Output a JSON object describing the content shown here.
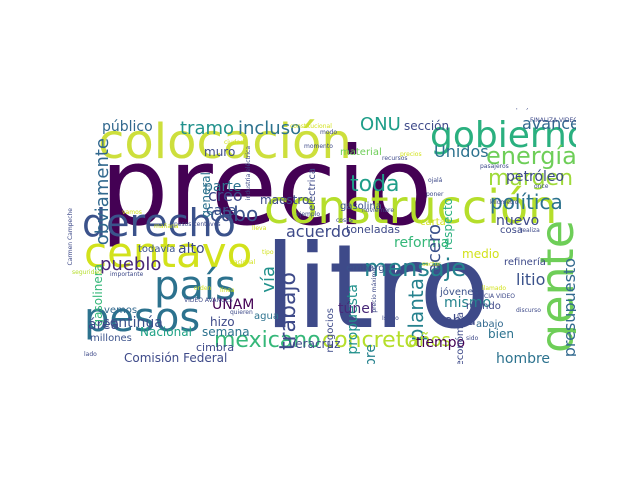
{
  "title": "",
  "words": [
    {
      "text": "precio",
      "color": "#440154"
    },
    {
      "text": "litro",
      "color": "#3e4a89"
    },
    {
      "text": "colocación",
      "color": "#cddf3c"
    },
    {
      "text": "construcción",
      "color": "#b5de2b"
    },
    {
      "text": "gobierno",
      "color": "#2ab07f"
    },
    {
      "text": "centavo",
      "color": "#d2e21b"
    },
    {
      "text": "derecho",
      "color": "#3b528b"
    },
    {
      "text": "país",
      "color": "#2c728e"
    },
    {
      "text": "pesos",
      "color": "#2c728e"
    },
    {
      "text": "gente",
      "color": "#6ece58"
    },
    {
      "text": "mensaje",
      "color": "#25848e"
    },
    {
      "text": "concreto",
      "color": "#b5de2b"
    },
    {
      "text": "energía",
      "color": "#6ece58"
    },
    {
      "text": "margen",
      "color": "#9fda3a"
    },
    {
      "text": "política",
      "color": "#2c728e"
    },
    {
      "text": "toda",
      "color": "#1f9e89"
    },
    {
      "text": "mexicano",
      "color": "#35b779"
    },
    {
      "text": "trabajo",
      "color": "#3e4a89"
    },
    {
      "text": "obviamente",
      "color": "#31688e"
    },
    {
      "text": "tramo",
      "color": "#21918c"
    },
    {
      "text": "incluso",
      "color": "#2c728e"
    },
    {
      "text": "ONU",
      "color": "#1f9e89"
    },
    {
      "text": "cabo",
      "color": "#3b528b"
    },
    {
      "text": "pueblo",
      "color": "#482878"
    },
    {
      "text": "vía",
      "color": "#21918c"
    },
    {
      "text": "presupuesto",
      "color": "#31688e"
    },
    {
      "text": "planta",
      "color": "#26828e"
    },
    {
      "text": "avance",
      "color": "#31688e"
    },
    {
      "text": "petróleo",
      "color": "#3e4a89"
    },
    {
      "text": "litio",
      "color": "#3b528b"
    },
    {
      "text": "años",
      "color": "#b5de2b"
    },
    {
      "text": "hombre",
      "color": "#2c728e"
    },
    {
      "text": "Unidos",
      "color": "#2c728e"
    },
    {
      "text": "propuesta",
      "color": "#21918c"
    },
    {
      "text": "público",
      "color": "#31688e"
    },
    {
      "text": "sección",
      "color": "#3e4a89"
    },
    {
      "text": "continúa",
      "color": "#3b528b"
    },
    {
      "text": "gasolinera",
      "color": "#35b779"
    },
    {
      "text": "área",
      "color": "#3e4a89"
    },
    {
      "text": "Nacional",
      "color": "#20a386"
    },
    {
      "text": "semana",
      "color": "#2c728e"
    },
    {
      "text": "UNAM",
      "color": "#440154"
    },
    {
      "text": "Veracruz",
      "color": "#3e4a89"
    },
    {
      "text": "túnel",
      "color": "#482878"
    },
    {
      "text": "reforma",
      "color": "#35b779"
    },
    {
      "text": "nuevo",
      "color": "#3e4a89"
    },
    {
      "text": "mismo",
      "color": "#25848e"
    },
    {
      "text": "obra",
      "color": "#3e4a89"
    },
    {
      "text": "bien",
      "color": "#2c728e"
    },
    {
      "text": "tiempo",
      "color": "#440154"
    },
    {
      "text": "siempre",
      "color": "#26828e"
    },
    {
      "text": "acero",
      "color": "#3b528b"
    },
    {
      "text": "acuerdo",
      "color": "#3e4a89"
    },
    {
      "text": "creo",
      "color": "#3e4a89"
    },
    {
      "text": "cara",
      "color": "#3b528b"
    },
    {
      "text": "parte",
      "color": "#2c728e"
    },
    {
      "text": "muro",
      "color": "#3e4a89"
    },
    {
      "text": "general",
      "color": "#2c728e"
    },
    {
      "text": "alto",
      "color": "#3e4a89"
    },
    {
      "text": "todavía",
      "color": "#3b528b"
    },
    {
      "text": "Comisión Federal",
      "color": "#3e4a89"
    },
    {
      "text": "cimbra",
      "color": "#3e4a89"
    },
    {
      "text": "millones",
      "color": "#3b528b"
    },
    {
      "text": "vemos",
      "color": "#31688e"
    },
    {
      "text": "hizo",
      "color": "#3e4a89"
    },
    {
      "text": "agua",
      "color": "#2c728e"
    },
    {
      "text": "negocios",
      "color": "#3e4a89"
    },
    {
      "text": "toneladas",
      "color": "#3e4a89"
    },
    {
      "text": "embargo",
      "color": "#3b528b"
    },
    {
      "text": "refinería",
      "color": "#3e4a89"
    },
    {
      "text": "cosa",
      "color": "#3e4a89"
    },
    {
      "text": "medio",
      "color": "#d2e21b"
    },
    {
      "text": "respecto",
      "color": "#2ab07f"
    },
    {
      "text": "económica",
      "color": "#3e4a89"
    },
    {
      "text": "jóvenes",
      "color": "#3b528b"
    },
    {
      "text": "mundo",
      "color": "#3e4a89"
    },
    {
      "text": "abajo",
      "color": "#31688e"
    },
    {
      "text": "maestro",
      "color": "#3e4a89"
    },
    {
      "text": "gasolina",
      "color": "#3b528b"
    },
    {
      "text": "material",
      "color": "#6ece58"
    },
    {
      "text": "eléctrica",
      "color": "#3e4a89"
    },
    {
      "text": "pasajeros",
      "color": "#3e4a89"
    },
    {
      "text": "kilómetro",
      "color": "#3e4a89"
    },
    {
      "text": "poner",
      "color": "#3e4a89"
    },
    {
      "text": "ojalá",
      "color": "#3e4a89"
    },
    {
      "text": "carta",
      "color": "#d2e21b"
    },
    {
      "text": "recursos",
      "color": "#3e4a89"
    },
    {
      "text": "momento",
      "color": "#3e4a89"
    },
    {
      "text": "modo",
      "color": "#3e4a89"
    },
    {
      "text": "ejemplo",
      "color": "#3e4a89"
    },
    {
      "text": "noviembre",
      "color": "#3e4a89"
    },
    {
      "text": "constitucional",
      "color": "#d2e21b"
    },
    {
      "text": "industria eléctrica",
      "color": "#3e4a89"
    },
    {
      "text": "pesos centavos",
      "color": "#3e4a89"
    },
    {
      "text": "seguridad",
      "color": "#b5de2b"
    },
    {
      "text": "importante",
      "color": "#3e4a89"
    },
    {
      "text": "Carmen Campeche",
      "color": "#3e4a89"
    },
    {
      "text": "VIDEO AVANCES",
      "color": "#3e4a89"
    },
    {
      "text": "quieren",
      "color": "#3e4a89"
    },
    {
      "text": "lado",
      "color": "#3e4a89"
    },
    {
      "text": "precio máximo",
      "color": "#3e4a89"
    },
    {
      "text": "ciudad",
      "color": "#d2e21b"
    },
    {
      "text": "vamos",
      "color": "#d2e21b"
    },
    {
      "text": "sector",
      "color": "#d2e21b"
    },
    {
      "text": "llamado",
      "color": "#d2e21b"
    },
    {
      "text": "Istmo",
      "color": "#3e4a89"
    },
    {
      "text": "proyecto",
      "color": "#3e4a89"
    },
    {
      "text": "FINALIZA VIDEO",
      "color": "#3e4a89"
    },
    {
      "text": "INICIA VIDEO",
      "color": "#3e4a89"
    },
    {
      "text": "realiza",
      "color": "#3e4a89"
    },
    {
      "text": "nacional",
      "color": "#d2e21b"
    },
    {
      "text": "tipo",
      "color": "#d2e21b"
    },
    {
      "text": "orden",
      "color": "#d2e21b"
    },
    {
      "text": "línea",
      "color": "#d2e21b"
    },
    {
      "text": "discurso",
      "color": "#3e4a89"
    },
    {
      "text": "cosas",
      "color": "#3e4a89"
    },
    {
      "text": "precios",
      "color": "#d2e21b"
    },
    {
      "text": "once",
      "color": "#3e4a89"
    },
    {
      "text": "mañana",
      "color": "#d2e21b"
    },
    {
      "text": "lleva",
      "color": "#d2e21b"
    },
    {
      "text": "sido",
      "color": "#3e4a89"
    }
  ]
}
